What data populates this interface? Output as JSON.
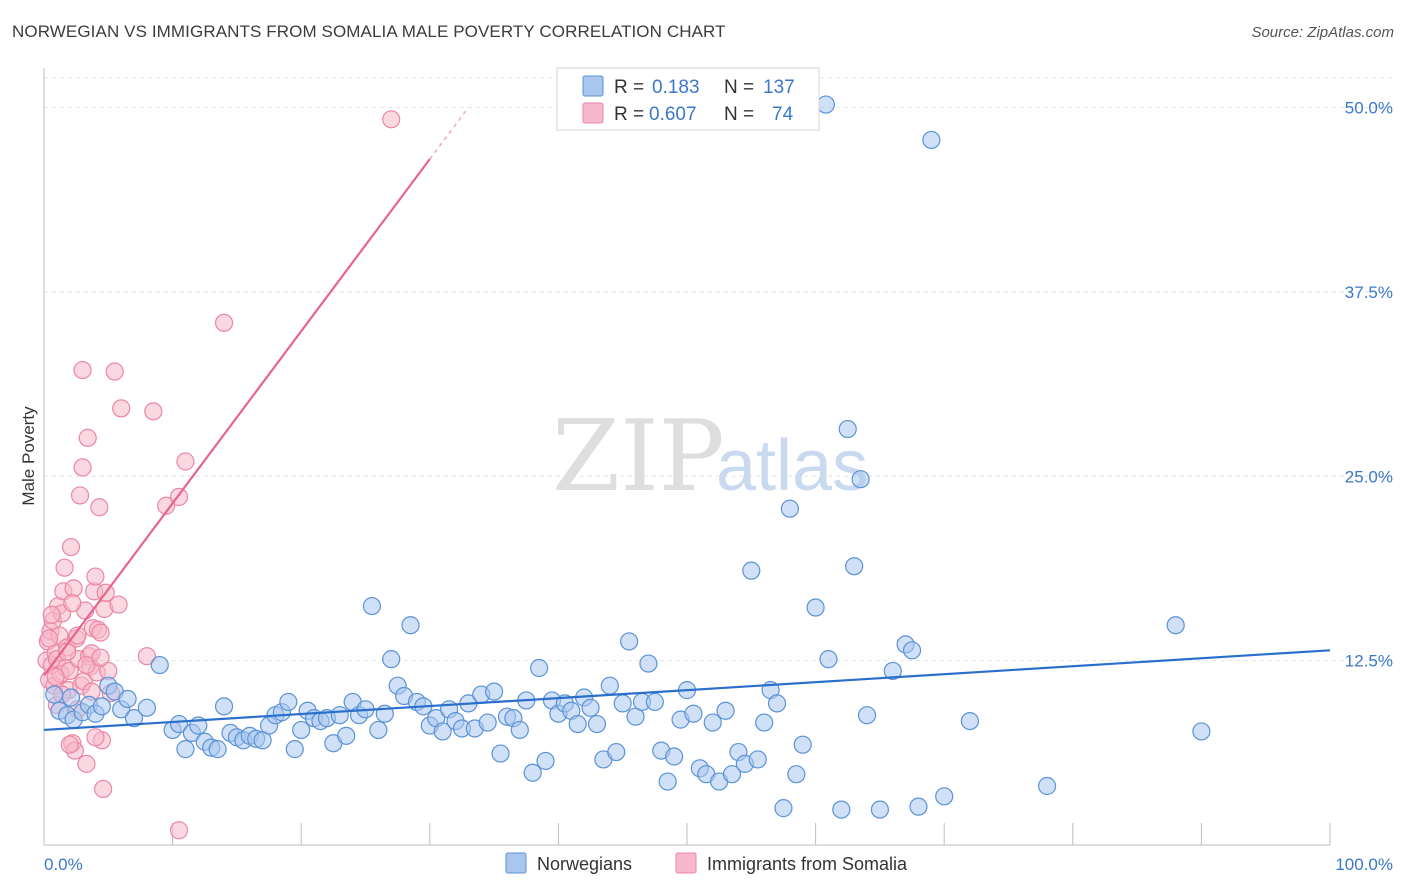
{
  "title": "NORWEGIAN VS IMMIGRANTS FROM SOMALIA MALE POVERTY CORRELATION CHART",
  "source": "Source: ZipAtlas.com",
  "watermark": {
    "zip": "ZIP",
    "atlas": "atlas"
  },
  "legend_box": {
    "rows": [
      {
        "r_label": "R =",
        "r_value": "0.183",
        "n_label": "N =",
        "n_value": "137"
      },
      {
        "r_label": "R =",
        "r_value": "0.607",
        "n_label": "N =",
        "n_value": "74"
      }
    ]
  },
  "bottom_legend": [
    "Norwegians",
    "Immigrants from Somalia"
  ],
  "colors": {
    "blue_fill": "#a9c7ee",
    "blue_stroke": "#5b93d6",
    "blue_line": "#2a6fcc",
    "pink_fill": "#f6b8cb",
    "pink_stroke": "#ec86a5",
    "pink_line": "#e8638f"
  },
  "chart_data": {
    "type": "scatter",
    "title": "NORWEGIAN VS IMMIGRANTS FROM SOMALIA MALE POVERTY CORRELATION CHART",
    "xlabel": "",
    "ylabel": "Male Poverty",
    "xlim": [
      0,
      100
    ],
    "ylim": [
      0,
      52
    ],
    "x_tick_labels": [
      "0.0%",
      "100.0%"
    ],
    "y_ticks": [
      12.5,
      25.0,
      37.5,
      50.0
    ],
    "y_tick_labels": [
      "12.5%",
      "25.0%",
      "37.5%",
      "50.0%"
    ],
    "grid": true,
    "legend_position": "top-center",
    "series": [
      {
        "name": "Norwegians",
        "r": 0.183,
        "n": 137,
        "trend": {
          "x": [
            0,
            100
          ],
          "y": [
            7.8,
            13.2
          ]
        },
        "points": [
          [
            0.8,
            10.2
          ],
          [
            1.2,
            9.1
          ],
          [
            1.8,
            8.8
          ],
          [
            2.1,
            10.0
          ],
          [
            2.3,
            8.5
          ],
          [
            3.0,
            9.0
          ],
          [
            3.5,
            9.5
          ],
          [
            4.0,
            8.9
          ],
          [
            4.5,
            9.4
          ],
          [
            5.0,
            10.8
          ],
          [
            5.5,
            10.4
          ],
          [
            6.0,
            9.2
          ],
          [
            6.5,
            9.9
          ],
          [
            7.0,
            8.6
          ],
          [
            8.0,
            9.3
          ],
          [
            9.0,
            12.2
          ],
          [
            10.0,
            7.8
          ],
          [
            10.5,
            8.2
          ],
          [
            11.0,
            6.5
          ],
          [
            11.5,
            7.6
          ],
          [
            12.0,
            8.1
          ],
          [
            12.5,
            7.0
          ],
          [
            13.0,
            6.6
          ],
          [
            13.5,
            6.5
          ],
          [
            14.0,
            9.4
          ],
          [
            14.5,
            7.6
          ],
          [
            15.0,
            7.3
          ],
          [
            15.5,
            7.1
          ],
          [
            16.0,
            7.4
          ],
          [
            16.5,
            7.2
          ],
          [
            17.0,
            7.1
          ],
          [
            17.5,
            8.1
          ],
          [
            18.0,
            8.8
          ],
          [
            18.5,
            9.0
          ],
          [
            19.0,
            9.7
          ],
          [
            19.5,
            6.5
          ],
          [
            20.0,
            7.8
          ],
          [
            20.5,
            9.1
          ],
          [
            21.0,
            8.6
          ],
          [
            21.5,
            8.4
          ],
          [
            22.0,
            8.6
          ],
          [
            22.5,
            6.9
          ],
          [
            23.0,
            8.8
          ],
          [
            23.5,
            7.4
          ],
          [
            24.0,
            9.7
          ],
          [
            24.5,
            8.8
          ],
          [
            25.0,
            9.2
          ],
          [
            25.5,
            16.2
          ],
          [
            26.0,
            7.8
          ],
          [
            26.5,
            8.9
          ],
          [
            27.0,
            12.6
          ],
          [
            27.5,
            10.8
          ],
          [
            28.0,
            10.1
          ],
          [
            28.5,
            14.9
          ],
          [
            29.0,
            9.7
          ],
          [
            29.5,
            9.4
          ],
          [
            30.0,
            8.1
          ],
          [
            30.5,
            8.6
          ],
          [
            31.0,
            7.7
          ],
          [
            31.5,
            9.2
          ],
          [
            32.0,
            8.4
          ],
          [
            32.5,
            7.9
          ],
          [
            33.0,
            9.6
          ],
          [
            33.5,
            7.9
          ],
          [
            34.0,
            10.2
          ],
          [
            34.5,
            8.3
          ],
          [
            35.0,
            10.4
          ],
          [
            35.5,
            6.2
          ],
          [
            36.0,
            8.7
          ],
          [
            36.5,
            8.6
          ],
          [
            37.0,
            7.8
          ],
          [
            37.5,
            9.8
          ],
          [
            38.0,
            4.9
          ],
          [
            38.5,
            12.0
          ],
          [
            39.0,
            5.7
          ],
          [
            39.5,
            9.8
          ],
          [
            40.0,
            8.9
          ],
          [
            40.5,
            9.6
          ],
          [
            41.0,
            9.1
          ],
          [
            41.5,
            8.2
          ],
          [
            42.0,
            10.0
          ],
          [
            42.5,
            9.3
          ],
          [
            43.0,
            8.2
          ],
          [
            43.5,
            5.8
          ],
          [
            44.0,
            10.8
          ],
          [
            44.5,
            6.3
          ],
          [
            45.0,
            9.6
          ],
          [
            45.5,
            13.8
          ],
          [
            46.0,
            8.7
          ],
          [
            46.5,
            9.7
          ],
          [
            47.0,
            12.3
          ],
          [
            47.5,
            9.7
          ],
          [
            48.0,
            6.4
          ],
          [
            48.5,
            4.3
          ],
          [
            49.0,
            6.0
          ],
          [
            49.5,
            8.5
          ],
          [
            50.0,
            10.5
          ],
          [
            50.5,
            8.9
          ],
          [
            51.0,
            5.2
          ],
          [
            51.5,
            4.8
          ],
          [
            52.0,
            8.3
          ],
          [
            52.5,
            4.3
          ],
          [
            53.0,
            9.1
          ],
          [
            53.5,
            4.8
          ],
          [
            54.0,
            6.3
          ],
          [
            54.5,
            5.5
          ],
          [
            55.0,
            18.6
          ],
          [
            55.5,
            5.8
          ],
          [
            56.0,
            8.3
          ],
          [
            56.5,
            10.5
          ],
          [
            57.0,
            9.6
          ],
          [
            57.5,
            2.5
          ],
          [
            58.0,
            22.8
          ],
          [
            58.5,
            4.8
          ],
          [
            59.0,
            6.8
          ],
          [
            60.0,
            16.1
          ],
          [
            61.0,
            12.6
          ],
          [
            62.0,
            2.4
          ],
          [
            62.5,
            28.2
          ],
          [
            63.0,
            18.9
          ],
          [
            63.5,
            24.8
          ],
          [
            64.0,
            8.8
          ],
          [
            65.0,
            2.4
          ],
          [
            66.0,
            11.8
          ],
          [
            67.0,
            13.6
          ],
          [
            67.5,
            13.2
          ],
          [
            68.0,
            2.6
          ],
          [
            69.0,
            47.8
          ],
          [
            70.0,
            3.3
          ],
          [
            72.0,
            8.4
          ],
          [
            78.0,
            4.0
          ],
          [
            88.0,
            14.9
          ],
          [
            90.0,
            7.7
          ],
          [
            60.8,
            50.2
          ]
        ]
      },
      {
        "name": "Immigrants from Somalia",
        "r": 0.607,
        "n": 74,
        "trend": {
          "x": [
            0,
            30
          ],
          "y": [
            11.5,
            46.5
          ]
        },
        "trend_extension": {
          "x": [
            30,
            33
          ],
          "y": [
            46.5,
            50.0
          ]
        },
        "points": [
          [
            0.2,
            12.5
          ],
          [
            0.3,
            13.8
          ],
          [
            0.4,
            11.2
          ],
          [
            0.5,
            14.5
          ],
          [
            0.6,
            12.2
          ],
          [
            0.7,
            15.2
          ],
          [
            0.8,
            10.8
          ],
          [
            0.9,
            13.0
          ],
          [
            1.0,
            12.6
          ],
          [
            1.1,
            16.2
          ],
          [
            1.2,
            14.2
          ],
          [
            1.3,
            11.6
          ],
          [
            1.4,
            15.7
          ],
          [
            1.5,
            17.2
          ],
          [
            1.6,
            18.8
          ],
          [
            1.7,
            12.0
          ],
          [
            1.8,
            13.4
          ],
          [
            1.9,
            10.5
          ],
          [
            2.0,
            11.8
          ],
          [
            2.1,
            20.2
          ],
          [
            2.2,
            6.9
          ],
          [
            2.3,
            17.4
          ],
          [
            2.4,
            6.4
          ],
          [
            2.5,
            14.0
          ],
          [
            2.6,
            9.2
          ],
          [
            2.7,
            12.6
          ],
          [
            2.8,
            23.7
          ],
          [
            2.9,
            10.8
          ],
          [
            3.0,
            25.6
          ],
          [
            3.1,
            11.1
          ],
          [
            3.2,
            15.9
          ],
          [
            3.3,
            5.5
          ],
          [
            3.4,
            27.6
          ],
          [
            3.5,
            12.8
          ],
          [
            3.6,
            12.1
          ],
          [
            3.7,
            13.0
          ],
          [
            3.8,
            14.7
          ],
          [
            3.9,
            17.2
          ],
          [
            4.0,
            18.2
          ],
          [
            4.1,
            11.7
          ],
          [
            4.2,
            14.6
          ],
          [
            4.3,
            22.9
          ],
          [
            4.4,
            14.4
          ],
          [
            4.5,
            7.1
          ],
          [
            4.6,
            3.8
          ],
          [
            4.7,
            16.0
          ],
          [
            4.8,
            17.1
          ],
          [
            5.0,
            11.8
          ],
          [
            5.2,
            10.3
          ],
          [
            5.5,
            32.1
          ],
          [
            5.8,
            16.3
          ],
          [
            6.0,
            29.6
          ],
          [
            8.0,
            12.8
          ],
          [
            8.5,
            29.4
          ],
          [
            9.5,
            23.0
          ],
          [
            10.5,
            23.6
          ],
          [
            11.0,
            26.0
          ],
          [
            14.0,
            35.4
          ],
          [
            27.0,
            49.2
          ],
          [
            10.5,
            1.0
          ],
          [
            3.0,
            32.2
          ],
          [
            2.0,
            6.8
          ],
          [
            1.0,
            9.5
          ],
          [
            0.6,
            15.6
          ],
          [
            1.4,
            10.2
          ],
          [
            2.6,
            14.2
          ],
          [
            3.3,
            12.2
          ],
          [
            4.0,
            7.3
          ],
          [
            0.9,
            11.4
          ],
          [
            1.8,
            13.1
          ],
          [
            2.2,
            16.4
          ],
          [
            3.7,
            10.4
          ],
          [
            4.4,
            12.7
          ],
          [
            0.4,
            14.0
          ]
        ]
      }
    ]
  }
}
